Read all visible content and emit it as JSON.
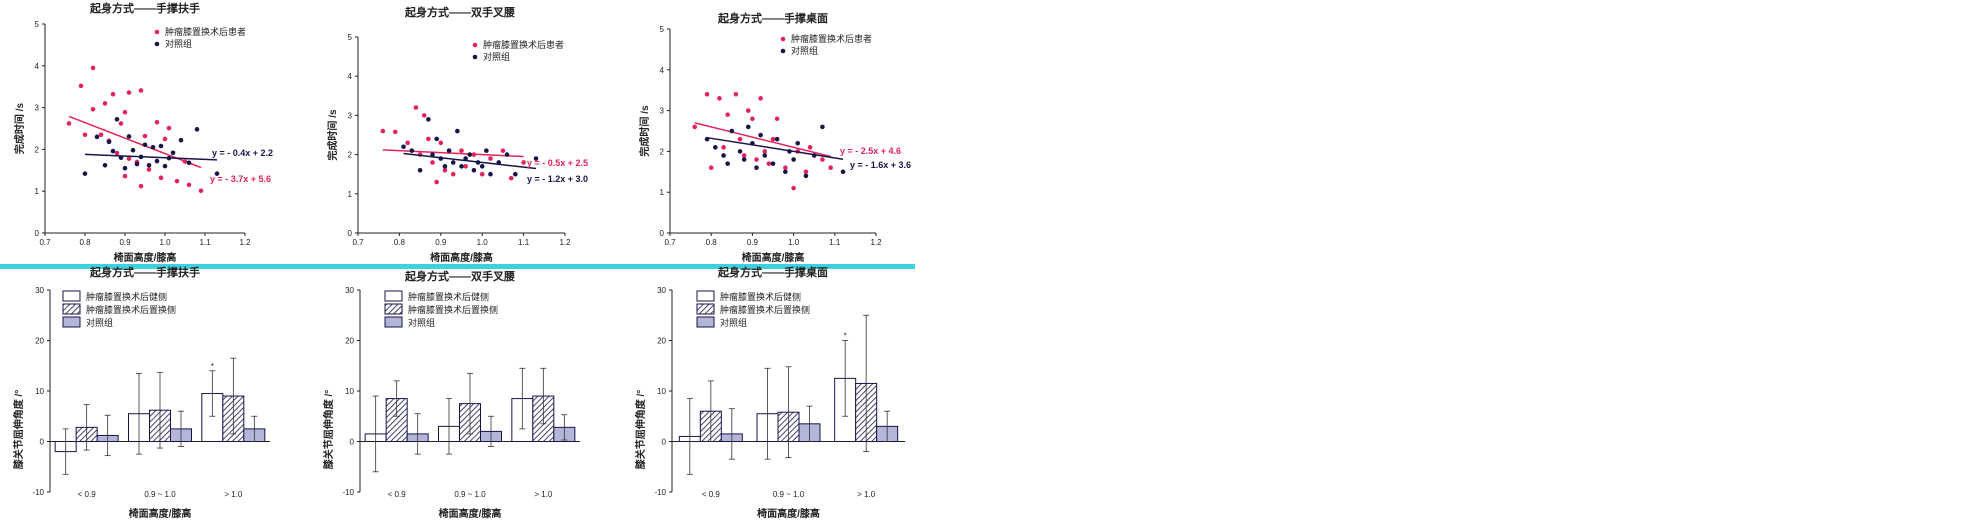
{
  "colors": {
    "patient": "#e3245a",
    "control": "#15154a",
    "divider": "#3fd0de",
    "control_bar": "#b3b6d8",
    "axis": "#222222"
  },
  "chart_data": [
    {
      "type": "scatter",
      "title": "起身方式——手撑扶手",
      "xlabel": "椅面高度/膝高",
      "ylabel": "完成时间 /s",
      "xlim": [
        0.7,
        1.2
      ],
      "ylim": [
        0,
        5
      ],
      "xticks": [
        "0.7",
        "0.8",
        "0.9",
        "1.0",
        "1.1",
        "1.2"
      ],
      "yticks": [
        "0",
        "1",
        "2",
        "3",
        "4",
        "5"
      ],
      "legend": [
        "肿瘤膝置换术后患者",
        "对照组"
      ],
      "legend_position": "top-right",
      "series": [
        {
          "name": "肿瘤膝置换术后患者",
          "color": "#e3245a",
          "points": [
            [
              0.76,
              2.62
            ],
            [
              0.79,
              3.52
            ],
            [
              0.8,
              2.35
            ],
            [
              0.82,
              3.95
            ],
            [
              0.82,
              2.96
            ],
            [
              0.84,
              2.35
            ],
            [
              0.85,
              3.1
            ],
            [
              0.86,
              2.21
            ],
            [
              0.87,
              3.32
            ],
            [
              0.88,
              1.91
            ],
            [
              0.89,
              2.62
            ],
            [
              0.9,
              1.36
            ],
            [
              0.9,
              2.89
            ],
            [
              0.91,
              3.36
            ],
            [
              0.91,
              1.78
            ],
            [
              0.93,
              1.7
            ],
            [
              0.94,
              3.41
            ],
            [
              0.94,
              1.12
            ],
            [
              0.95,
              2.32
            ],
            [
              0.96,
              1.52
            ],
            [
              0.98,
              2.65
            ],
            [
              0.99,
              1.32
            ],
            [
              1.0,
              2.25
            ],
            [
              1.01,
              2.51
            ],
            [
              1.03,
              1.24
            ],
            [
              1.05,
              1.71
            ],
            [
              1.06,
              1.15
            ],
            [
              1.09,
              1.01
            ]
          ],
          "fit": {
            "label": "y = - 3.7x + 5.6",
            "slope": -3.7,
            "intercept": 5.6,
            "x": [
              0.76,
              1.09
            ]
          }
        },
        {
          "name": "对照组",
          "color": "#15154a",
          "points": [
            [
              0.8,
              1.42
            ],
            [
              0.83,
              2.3
            ],
            [
              0.85,
              1.62
            ],
            [
              0.86,
              2.18
            ],
            [
              0.87,
              1.96
            ],
            [
              0.88,
              2.72
            ],
            [
              0.89,
              1.8
            ],
            [
              0.9,
              1.55
            ],
            [
              0.91,
              2.31
            ],
            [
              0.92,
              1.98
            ],
            [
              0.93,
              1.65
            ],
            [
              0.94,
              1.82
            ],
            [
              0.95,
              2.11
            ],
            [
              0.96,
              1.62
            ],
            [
              0.97,
              2.05
            ],
            [
              0.98,
              1.72
            ],
            [
              0.99,
              2.08
            ],
            [
              1.0,
              1.6
            ],
            [
              1.01,
              1.79
            ],
            [
              1.02,
              1.92
            ],
            [
              1.04,
              2.22
            ],
            [
              1.06,
              1.68
            ],
            [
              1.08,
              2.48
            ],
            [
              1.13,
              1.42
            ]
          ],
          "fit": {
            "label": "y = - 0.4x + 2.2",
            "slope": -0.4,
            "intercept": 2.2,
            "x": [
              0.8,
              1.13
            ]
          }
        }
      ]
    },
    {
      "type": "scatter",
      "title": "起身方式——双手叉腰",
      "xlabel": "椅面高度/膝高",
      "ylabel": "完成时间 /s",
      "xlim": [
        0.7,
        1.2
      ],
      "ylim": [
        0,
        5
      ],
      "xticks": [
        "0.7",
        "0.8",
        "0.9",
        "1.0",
        "1.1",
        "1.2"
      ],
      "yticks": [
        "0",
        "1",
        "2",
        "3",
        "4",
        "5"
      ],
      "legend": [
        "肿瘤膝置换术后患者",
        "对照组"
      ],
      "legend_position": "top-right",
      "series": [
        {
          "name": "肿瘤膝置换术后患者",
          "color": "#e3245a",
          "points": [
            [
              0.76,
              2.6
            ],
            [
              0.79,
              2.58
            ],
            [
              0.82,
              2.3
            ],
            [
              0.84,
              3.2
            ],
            [
              0.85,
              2.0
            ],
            [
              0.86,
              3.0
            ],
            [
              0.87,
              2.4
            ],
            [
              0.88,
              1.8
            ],
            [
              0.89,
              1.3
            ],
            [
              0.9,
              2.3
            ],
            [
              0.91,
              1.6
            ],
            [
              0.92,
              2.1
            ],
            [
              0.93,
              1.5
            ],
            [
              0.95,
              2.1
            ],
            [
              0.96,
              1.7
            ],
            [
              0.98,
              2.0
            ],
            [
              1.0,
              1.5
            ],
            [
              1.02,
              1.9
            ],
            [
              1.05,
              2.1
            ],
            [
              1.07,
              1.4
            ],
            [
              1.1,
              1.8
            ]
          ],
          "fit": {
            "label": "y = - 0.5x + 2.5",
            "slope": -0.5,
            "intercept": 2.5,
            "x": [
              0.76,
              1.1
            ]
          }
        },
        {
          "name": "对照组",
          "color": "#15154a",
          "points": [
            [
              0.81,
              2.2
            ],
            [
              0.83,
              2.1
            ],
            [
              0.85,
              1.6
            ],
            [
              0.87,
              2.9
            ],
            [
              0.88,
              2.0
            ],
            [
              0.89,
              2.4
            ],
            [
              0.9,
              1.9
            ],
            [
              0.91,
              1.7
            ],
            [
              0.92,
              2.1
            ],
            [
              0.93,
              1.8
            ],
            [
              0.94,
              2.6
            ],
            [
              0.95,
              1.7
            ],
            [
              0.96,
              1.9
            ],
            [
              0.97,
              2.0
            ],
            [
              0.98,
              1.6
            ],
            [
              0.99,
              1.8
            ],
            [
              1.0,
              1.7
            ],
            [
              1.01,
              2.1
            ],
            [
              1.02,
              1.5
            ],
            [
              1.04,
              1.8
            ],
            [
              1.06,
              2.0
            ],
            [
              1.08,
              1.5
            ],
            [
              1.13,
              1.9
            ]
          ],
          "fit": {
            "label": "y = - 1.2x + 3.0",
            "slope": -1.2,
            "intercept": 3.0,
            "x": [
              0.81,
              1.13
            ]
          }
        }
      ]
    },
    {
      "type": "scatter",
      "title": "起身方式——手撑桌面",
      "xlabel": "椅面高度/膝高",
      "ylabel": "完成时间 /s",
      "xlim": [
        0.7,
        1.2
      ],
      "ylim": [
        0,
        5
      ],
      "xticks": [
        "0.7",
        "0.8",
        "0.9",
        "1.0",
        "1.1",
        "1.2"
      ],
      "yticks": [
        "0",
        "1",
        "2",
        "3",
        "4",
        "5"
      ],
      "legend": [
        "肿瘤膝置换术后患者",
        "对照组"
      ],
      "legend_position": "top-right",
      "series": [
        {
          "name": "肿瘤膝置换术后患者",
          "color": "#e3245a",
          "points": [
            [
              0.76,
              2.6
            ],
            [
              0.79,
              3.4
            ],
            [
              0.8,
              1.6
            ],
            [
              0.82,
              3.3
            ],
            [
              0.83,
              2.1
            ],
            [
              0.84,
              2.9
            ],
            [
              0.86,
              3.4
            ],
            [
              0.87,
              2.3
            ],
            [
              0.88,
              1.9
            ],
            [
              0.89,
              3.0
            ],
            [
              0.9,
              2.8
            ],
            [
              0.91,
              1.8
            ],
            [
              0.92,
              3.3
            ],
            [
              0.93,
              2.0
            ],
            [
              0.94,
              1.7
            ],
            [
              0.95,
              2.3
            ],
            [
              0.96,
              2.8
            ],
            [
              0.98,
              1.6
            ],
            [
              1.0,
              1.1
            ],
            [
              1.01,
              2.0
            ],
            [
              1.03,
              1.5
            ],
            [
              1.04,
              2.1
            ],
            [
              1.07,
              1.8
            ],
            [
              1.09,
              1.6
            ]
          ],
          "fit": {
            "label": "y = - 2.5x + 4.6",
            "slope": -2.5,
            "intercept": 4.6,
            "x": [
              0.76,
              1.09
            ]
          }
        },
        {
          "name": "对照组",
          "color": "#15154a",
          "points": [
            [
              0.79,
              2.3
            ],
            [
              0.81,
              2.1
            ],
            [
              0.83,
              1.9
            ],
            [
              0.84,
              1.7
            ],
            [
              0.85,
              2.5
            ],
            [
              0.87,
              2.0
            ],
            [
              0.88,
              1.8
            ],
            [
              0.89,
              2.6
            ],
            [
              0.9,
              2.2
            ],
            [
              0.91,
              1.6
            ],
            [
              0.92,
              2.4
            ],
            [
              0.93,
              1.9
            ],
            [
              0.95,
              1.7
            ],
            [
              0.96,
              2.3
            ],
            [
              0.98,
              1.5
            ],
            [
              0.99,
              2.0
            ],
            [
              1.0,
              1.8
            ],
            [
              1.01,
              2.2
            ],
            [
              1.03,
              1.4
            ],
            [
              1.05,
              1.9
            ],
            [
              1.07,
              2.6
            ],
            [
              1.12,
              1.5
            ]
          ],
          "fit": {
            "label": "y = - 1.6x + 3.6",
            "slope": -1.6,
            "intercept": 3.6,
            "x": [
              0.79,
              1.12
            ]
          }
        }
      ]
    },
    {
      "type": "bar",
      "title": "起身方式——手撑扶手",
      "xlabel": "椅面高度/膝高",
      "ylabel": "膝关节屈伸角度 /°",
      "ylim": [
        -10,
        30
      ],
      "yticks": [
        "-10",
        "0",
        "10",
        "20",
        "30"
      ],
      "categories": [
        "< 0.9",
        "0.9 ~ 1.0",
        "> 1.0"
      ],
      "legend": [
        "肿瘤膝置换术后健侧",
        "肿瘤膝置换术后置换侧",
        "对照组"
      ],
      "legend_position": "top-left",
      "series": [
        {
          "name": "肿瘤膝置换术后健侧",
          "values": [
            -2.0,
            5.5,
            9.5
          ],
          "errors": [
            4.5,
            8.0,
            4.5
          ]
        },
        {
          "name": "肿瘤膝置换术后置换侧",
          "values": [
            2.8,
            6.2,
            9.0
          ],
          "errors": [
            4.5,
            7.5,
            7.5
          ]
        },
        {
          "name": "对照组",
          "values": [
            1.2,
            2.5,
            2.5
          ],
          "errors": [
            4.0,
            3.5,
            2.5
          ]
        }
      ],
      "annotations": [
        {
          "category": "> 1.0",
          "series": 0,
          "text": "*"
        }
      ]
    },
    {
      "type": "bar",
      "title": "起身方式——双手叉腰",
      "xlabel": "椅面高度/膝高",
      "ylabel": "膝关节屈伸角度 /°",
      "ylim": [
        -10,
        30
      ],
      "yticks": [
        "-10",
        "0",
        "10",
        "20",
        "30"
      ],
      "categories": [
        "< 0.9",
        "0.9 ~ 1.0",
        "> 1.0"
      ],
      "legend": [
        "肿瘤膝置换术后健侧",
        "肿瘤膝置换术后置换侧",
        "对照组"
      ],
      "legend_position": "top-left",
      "series": [
        {
          "name": "肿瘤膝置换术后健侧",
          "values": [
            1.5,
            3.0,
            8.5
          ],
          "errors": [
            7.5,
            5.5,
            6.0
          ]
        },
        {
          "name": "肿瘤膝置换术后置换侧",
          "values": [
            8.5,
            7.5,
            9.0
          ],
          "errors": [
            3.5,
            6.0,
            5.5
          ]
        },
        {
          "name": "对照组",
          "values": [
            1.5,
            2.0,
            2.8
          ],
          "errors": [
            4.0,
            3.0,
            2.5
          ]
        }
      ]
    },
    {
      "type": "bar",
      "title": "起身方式——手撑桌面",
      "xlabel": "椅面高度/膝高",
      "ylabel": "膝关节屈伸角度 /°",
      "ylim": [
        -10,
        30
      ],
      "yticks": [
        "-10",
        "0",
        "10",
        "20",
        "30"
      ],
      "categories": [
        "< 0.9",
        "0.9 ~ 1.0",
        "> 1.0"
      ],
      "legend": [
        "肿瘤膝置换术后健侧",
        "肿瘤膝置换术后置换侧",
        "对照组"
      ],
      "legend_position": "top-left",
      "series": [
        {
          "name": "肿瘤膝置换术后健侧",
          "values": [
            1.0,
            5.5,
            12.5
          ],
          "errors": [
            7.5,
            9.0,
            7.5
          ]
        },
        {
          "name": "肿瘤膝置换术后置换侧",
          "values": [
            6.0,
            5.8,
            11.5
          ],
          "errors": [
            6.0,
            9.0,
            13.5
          ]
        },
        {
          "name": "对照组",
          "values": [
            1.5,
            3.5,
            3.0
          ],
          "errors": [
            5.0,
            3.5,
            3.0
          ]
        }
      ],
      "annotations": [
        {
          "category": "> 1.0",
          "series": 0,
          "text": "*"
        }
      ]
    }
  ]
}
